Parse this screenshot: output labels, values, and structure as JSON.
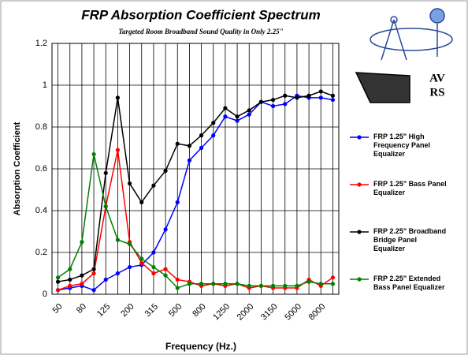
{
  "chart_data": {
    "type": "line",
    "title": "FRP Absorption Coefficient Spectrum",
    "subtitle": "Targeted Room Broadband Sound Quality in Only 2.25\"",
    "x_label": "Frequency (Hz.)",
    "y_label": "Absorption Coefficient",
    "annotations": [
      "AV",
      "RS"
    ],
    "categories": [
      "50",
      null,
      "80",
      null,
      "125",
      null,
      "200",
      null,
      "315",
      null,
      "500",
      null,
      "800",
      null,
      "1250",
      null,
      "2000",
      null,
      "3150",
      null,
      "5000",
      null,
      "8000",
      null
    ],
    "ylim": [
      0,
      1.2
    ],
    "yticks": [
      0,
      0.2,
      0.4,
      0.6,
      0.8,
      1,
      1.2
    ],
    "grid": true,
    "series": [
      {
        "name": "FRP 1.25\" High Frequency Panel Equalizer",
        "color": "#0000ff",
        "values": [
          0.02,
          0.03,
          0.04,
          0.02,
          0.07,
          0.1,
          0.13,
          0.14,
          0.2,
          0.31,
          0.44,
          0.64,
          0.7,
          0.76,
          0.85,
          0.83,
          0.86,
          0.92,
          0.9,
          0.91,
          0.95,
          0.94,
          0.94,
          0.93
        ]
      },
      {
        "name": "FRP 1.25\" Bass Panel Equalizer",
        "color": "#ff0000",
        "values": [
          0.02,
          0.04,
          0.05,
          0.1,
          0.42,
          0.69,
          0.25,
          0.15,
          0.1,
          0.12,
          0.07,
          0.06,
          0.04,
          0.05,
          0.04,
          0.05,
          0.03,
          0.04,
          0.03,
          0.03,
          0.03,
          0.07,
          0.04,
          0.08
        ]
      },
      {
        "name": "FRP 2.25\" Broadband Bridge Panel Equalizer",
        "color": "#000000",
        "values": [
          0.06,
          0.07,
          0.09,
          0.12,
          0.58,
          0.94,
          0.53,
          0.44,
          0.52,
          0.59,
          0.72,
          0.71,
          0.76,
          0.82,
          0.89,
          0.85,
          0.88,
          0.92,
          0.93,
          0.95,
          0.94,
          0.95,
          0.97,
          0.95
        ]
      },
      {
        "name": "FRP 2.25\" Extended Bass Panel Equalizer",
        "color": "#008000",
        "values": [
          0.08,
          0.12,
          0.25,
          0.67,
          0.42,
          0.26,
          0.24,
          0.17,
          0.13,
          0.09,
          0.03,
          0.05,
          0.05,
          0.05,
          0.05,
          0.05,
          0.04,
          0.04,
          0.04,
          0.04,
          0.04,
          0.06,
          0.05,
          0.05
        ]
      }
    ]
  }
}
